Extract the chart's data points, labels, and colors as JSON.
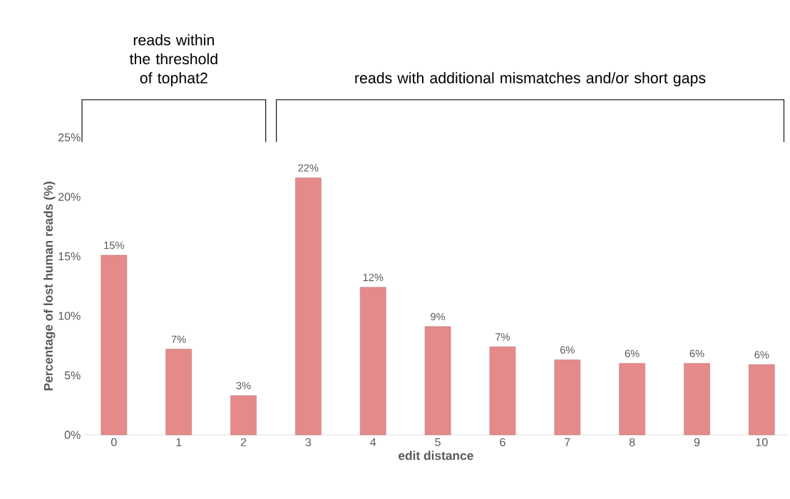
{
  "chart_data": {
    "type": "bar",
    "xlabel": "edit distance",
    "ylabel": "Percentage of lost human reads (%)",
    "categories": [
      "0",
      "1",
      "2",
      "3",
      "4",
      "5",
      "6",
      "7",
      "8",
      "9",
      "10"
    ],
    "values": [
      15.1,
      7.2,
      3.3,
      21.6,
      12.4,
      9.1,
      7.4,
      6.3,
      6.0,
      6.0,
      5.9
    ],
    "value_labels": [
      "15%",
      "7%",
      "3%",
      "22%",
      "12%",
      "9%",
      "7%",
      "6%",
      "6%",
      "6%",
      "6%"
    ],
    "color": "#e58a8a",
    "ylim": [
      0,
      25
    ],
    "yticks": [
      {
        "value": 0,
        "label": "0%"
      },
      {
        "value": 5,
        "label": "5%"
      },
      {
        "value": 10,
        "label": "10%"
      },
      {
        "value": 15,
        "label": "15%"
      },
      {
        "value": 20,
        "label": "20%"
      },
      {
        "value": 25,
        "label": "25%"
      }
    ],
    "annotations": [
      "reads within the threshold of tophat2",
      "reads with additional mismatches and/or short gaps"
    ]
  }
}
